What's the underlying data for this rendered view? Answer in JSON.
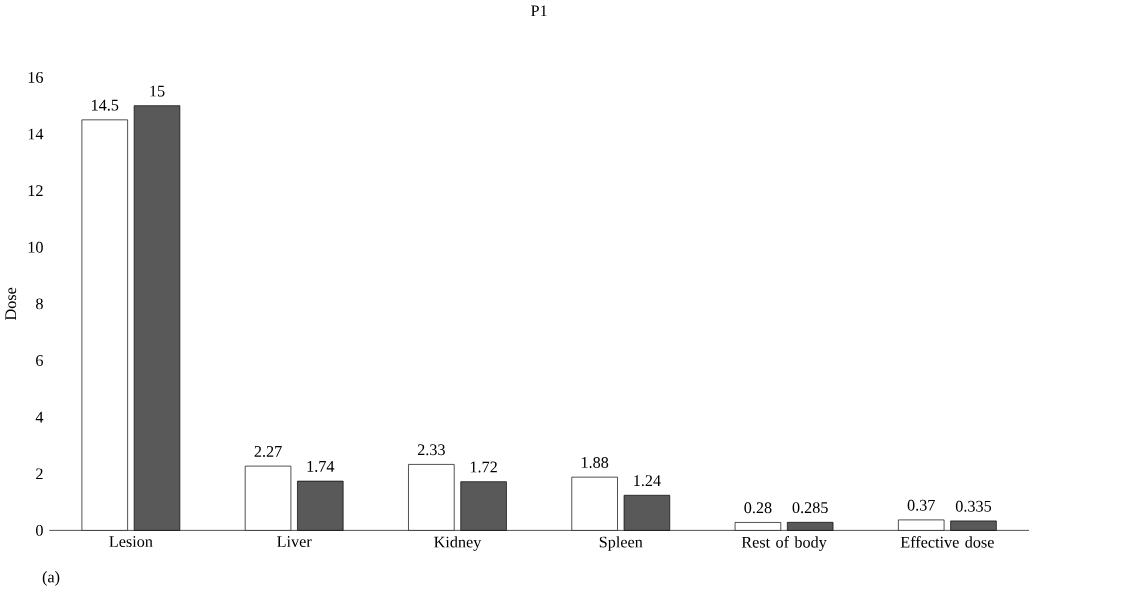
{
  "chart_data": {
    "type": "bar",
    "title": "P1",
    "ylabel": "Dose",
    "annotations": [
      "(a)"
    ],
    "categories": [
      "Lesion",
      "Liver",
      "Kidney",
      "Spleen",
      "Rest of body",
      "Effective dose"
    ],
    "series": [
      {
        "color": "#ffffff",
        "values": [
          14.5,
          2.27,
          2.33,
          1.88,
          0.28,
          0.37
        ]
      },
      {
        "color": "#595959",
        "values": [
          15,
          1.74,
          1.72,
          1.24,
          0.285,
          0.335
        ]
      }
    ],
    "ylim": [
      0,
      16
    ],
    "yticks": [
      0,
      2,
      4,
      6,
      8,
      10,
      12,
      14,
      16
    ],
    "data_labels": true
  }
}
